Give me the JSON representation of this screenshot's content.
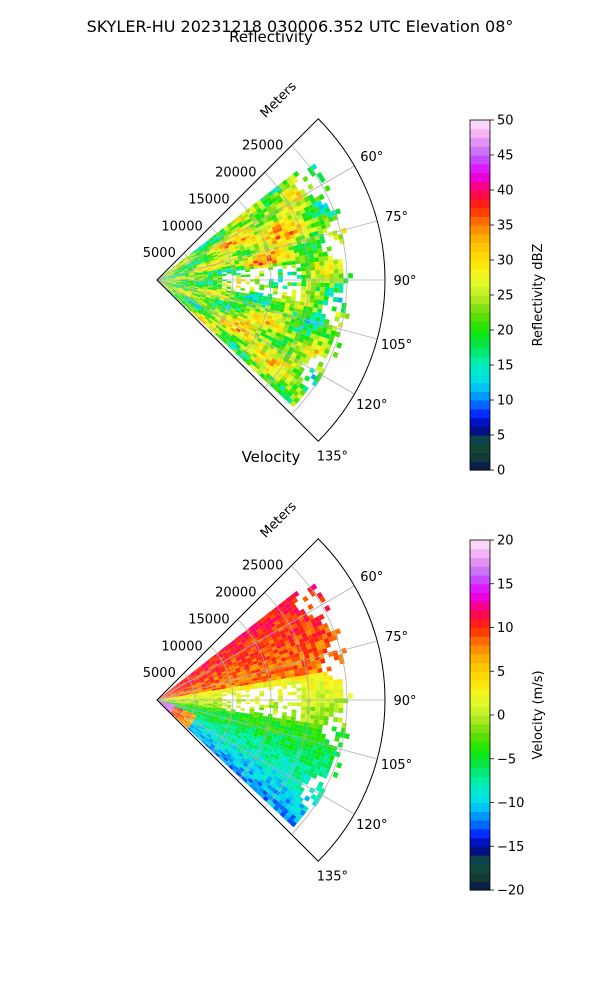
{
  "figure": {
    "suptitle": "SKYLER-HU  20231218  030006.352 UTC Elevation 08°"
  },
  "chart_data": [
    {
      "type": "heatmap",
      "subtype": "polar-sector-ppi",
      "title": "Reflectivity",
      "range_label": "Meters",
      "range_ticks": [
        5000,
        10000,
        15000,
        20000,
        25000
      ],
      "range_tick_labels": [
        "5000",
        "10000",
        "15000",
        "20000",
        "25000"
      ],
      "rmax": 30000,
      "theta_ticks": [
        60,
        75,
        90,
        105,
        120,
        135
      ],
      "theta_tick_labels": [
        "60°",
        "75°",
        "90°",
        "105°",
        "120°",
        "135°"
      ],
      "theta_range": [
        45,
        135
      ],
      "grid": true,
      "colorbar": {
        "label": "Reflectivity dBZ",
        "min": 0,
        "max": 50,
        "ticks": [
          0,
          5,
          10,
          15,
          20,
          25,
          30,
          35,
          40,
          45,
          50
        ],
        "tick_labels": [
          "0",
          "5",
          "10",
          "15",
          "20",
          "25",
          "30",
          "35",
          "40",
          "45",
          "50"
        ]
      },
      "data_extent": {
        "theta_min": 52,
        "theta_max": 133,
        "range_max_approx": 26500
      }
    },
    {
      "type": "heatmap",
      "subtype": "polar-sector-ppi",
      "title": "Velocity",
      "range_label": "Meters",
      "range_ticks": [
        5000,
        10000,
        15000,
        20000,
        25000
      ],
      "range_tick_labels": [
        "5000",
        "10000",
        "15000",
        "20000",
        "25000"
      ],
      "rmax": 30000,
      "theta_ticks": [
        60,
        75,
        90,
        105,
        120,
        135
      ],
      "theta_tick_labels": [
        "60°",
        "75°",
        "90°",
        "105°",
        "120°",
        "135°"
      ],
      "theta_range": [
        45,
        135
      ],
      "grid": true,
      "colorbar": {
        "label": "Velocity (m/s)",
        "min": -20,
        "max": 20,
        "ticks": [
          -20,
          -15,
          -10,
          -5,
          0,
          5,
          10,
          15,
          20
        ],
        "tick_labels": [
          "−20",
          "−15",
          "−10",
          "−5",
          "0",
          "5",
          "10",
          "15",
          "20"
        ]
      },
      "data_extent": {
        "theta_min": 52,
        "theta_max": 133,
        "range_max_approx": 26500
      }
    }
  ]
}
